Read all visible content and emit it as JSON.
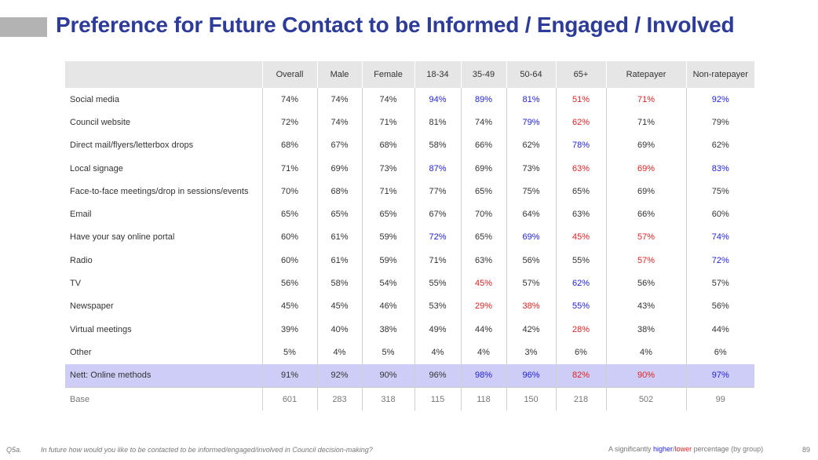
{
  "title": "Preference for Future Contact to be Informed / Engaged / Involved",
  "colors": {
    "title": "#2d3b99",
    "higher": "#2222dd",
    "lower": "#e32222",
    "highlight_row": "#cdcdf7"
  },
  "table": {
    "headers": [
      "",
      "Overall",
      "Male",
      "Female",
      "18-34",
      "35-49",
      "50-64",
      "65+",
      "Ratepayer",
      "Non-ratepayer"
    ],
    "rows": [
      {
        "label": "Social media",
        "values": [
          "74%",
          "74%",
          "74%",
          "94%",
          "89%",
          "81%",
          "51%",
          "71%",
          "92%"
        ],
        "flags": [
          "",
          "",
          "",
          "hi",
          "hi",
          "hi",
          "lo",
          "lo",
          "hi"
        ]
      },
      {
        "label": "Council website",
        "values": [
          "72%",
          "74%",
          "71%",
          "81%",
          "74%",
          "79%",
          "62%",
          "71%",
          "79%"
        ],
        "flags": [
          "",
          "",
          "",
          "",
          "",
          "hi",
          "lo",
          "",
          ""
        ]
      },
      {
        "label": "Direct mail/flyers/letterbox drops",
        "values": [
          "68%",
          "67%",
          "68%",
          "58%",
          "66%",
          "62%",
          "78%",
          "69%",
          "62%"
        ],
        "flags": [
          "",
          "",
          "",
          "",
          "",
          "",
          "hi",
          "",
          ""
        ]
      },
      {
        "label": "Local signage",
        "values": [
          "71%",
          "69%",
          "73%",
          "87%",
          "69%",
          "73%",
          "63%",
          "69%",
          "83%"
        ],
        "flags": [
          "",
          "",
          "",
          "hi",
          "",
          "",
          "lo",
          "lo",
          "hi"
        ]
      },
      {
        "label": "Face-to-face meetings/drop in sessions/events",
        "values": [
          "70%",
          "68%",
          "71%",
          "77%",
          "65%",
          "75%",
          "65%",
          "69%",
          "75%"
        ],
        "flags": [
          "",
          "",
          "",
          "",
          "",
          "",
          "",
          "",
          ""
        ]
      },
      {
        "label": "Email",
        "values": [
          "65%",
          "65%",
          "65%",
          "67%",
          "70%",
          "64%",
          "63%",
          "66%",
          "60%"
        ],
        "flags": [
          "",
          "",
          "",
          "",
          "",
          "",
          "",
          "",
          ""
        ]
      },
      {
        "label": "Have your say online portal",
        "values": [
          "60%",
          "61%",
          "59%",
          "72%",
          "65%",
          "69%",
          "45%",
          "57%",
          "74%"
        ],
        "flags": [
          "",
          "",
          "",
          "hi",
          "",
          "hi",
          "lo",
          "lo",
          "hi"
        ]
      },
      {
        "label": "Radio",
        "values": [
          "60%",
          "61%",
          "59%",
          "71%",
          "63%",
          "56%",
          "55%",
          "57%",
          "72%"
        ],
        "flags": [
          "",
          "",
          "",
          "",
          "",
          "",
          "",
          "lo",
          "hi"
        ]
      },
      {
        "label": "TV",
        "values": [
          "56%",
          "58%",
          "54%",
          "55%",
          "45%",
          "57%",
          "62%",
          "56%",
          "57%"
        ],
        "flags": [
          "",
          "",
          "",
          "",
          "lo",
          "",
          "hi",
          "",
          ""
        ]
      },
      {
        "label": "Newspaper",
        "values": [
          "45%",
          "45%",
          "46%",
          "53%",
          "29%",
          "38%",
          "55%",
          "43%",
          "56%"
        ],
        "flags": [
          "",
          "",
          "",
          "",
          "lo",
          "lo",
          "hi",
          "",
          ""
        ]
      },
      {
        "label": "Virtual meetings",
        "values": [
          "39%",
          "40%",
          "38%",
          "49%",
          "44%",
          "42%",
          "28%",
          "38%",
          "44%"
        ],
        "flags": [
          "",
          "",
          "",
          "",
          "",
          "",
          "lo",
          "",
          ""
        ]
      },
      {
        "label": "Other",
        "values": [
          "5%",
          "4%",
          "5%",
          "4%",
          "4%",
          "3%",
          "6%",
          "4%",
          "6%"
        ],
        "flags": [
          "",
          "",
          "",
          "",
          "",
          "",
          "",
          "",
          ""
        ]
      },
      {
        "label": "Nett: Online methods",
        "values": [
          "91%",
          "92%",
          "90%",
          "96%",
          "98%",
          "96%",
          "82%",
          "90%",
          "97%"
        ],
        "flags": [
          "",
          "",
          "",
          "",
          "hi",
          "hi",
          "lo",
          "lo",
          "hi"
        ],
        "highlight": true
      }
    ],
    "base": {
      "label": "Base",
      "values": [
        "601",
        "283",
        "318",
        "115",
        "118",
        "150",
        "218",
        "502",
        "99"
      ]
    }
  },
  "footer": {
    "question_number": "Q5a.",
    "question": "In future how would you like to be contacted to be informed/engaged/involved in Council decision-making?",
    "legend_prefix": "A significantly ",
    "legend_higher": "higher",
    "legend_sep": "/",
    "legend_lower": "lower",
    "legend_suffix": " percentage (by group)",
    "page_number": "89"
  }
}
